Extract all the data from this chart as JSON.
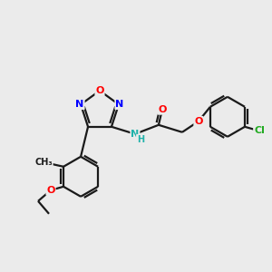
{
  "bg_color": "#ebebeb",
  "bond_color": "#1a1a1a",
  "atom_colors": {
    "O": "#ff0000",
    "N": "#0000ff",
    "Cl": "#22aa22",
    "NH": "#20b2aa",
    "C": "#1a1a1a"
  },
  "lw": 1.6
}
